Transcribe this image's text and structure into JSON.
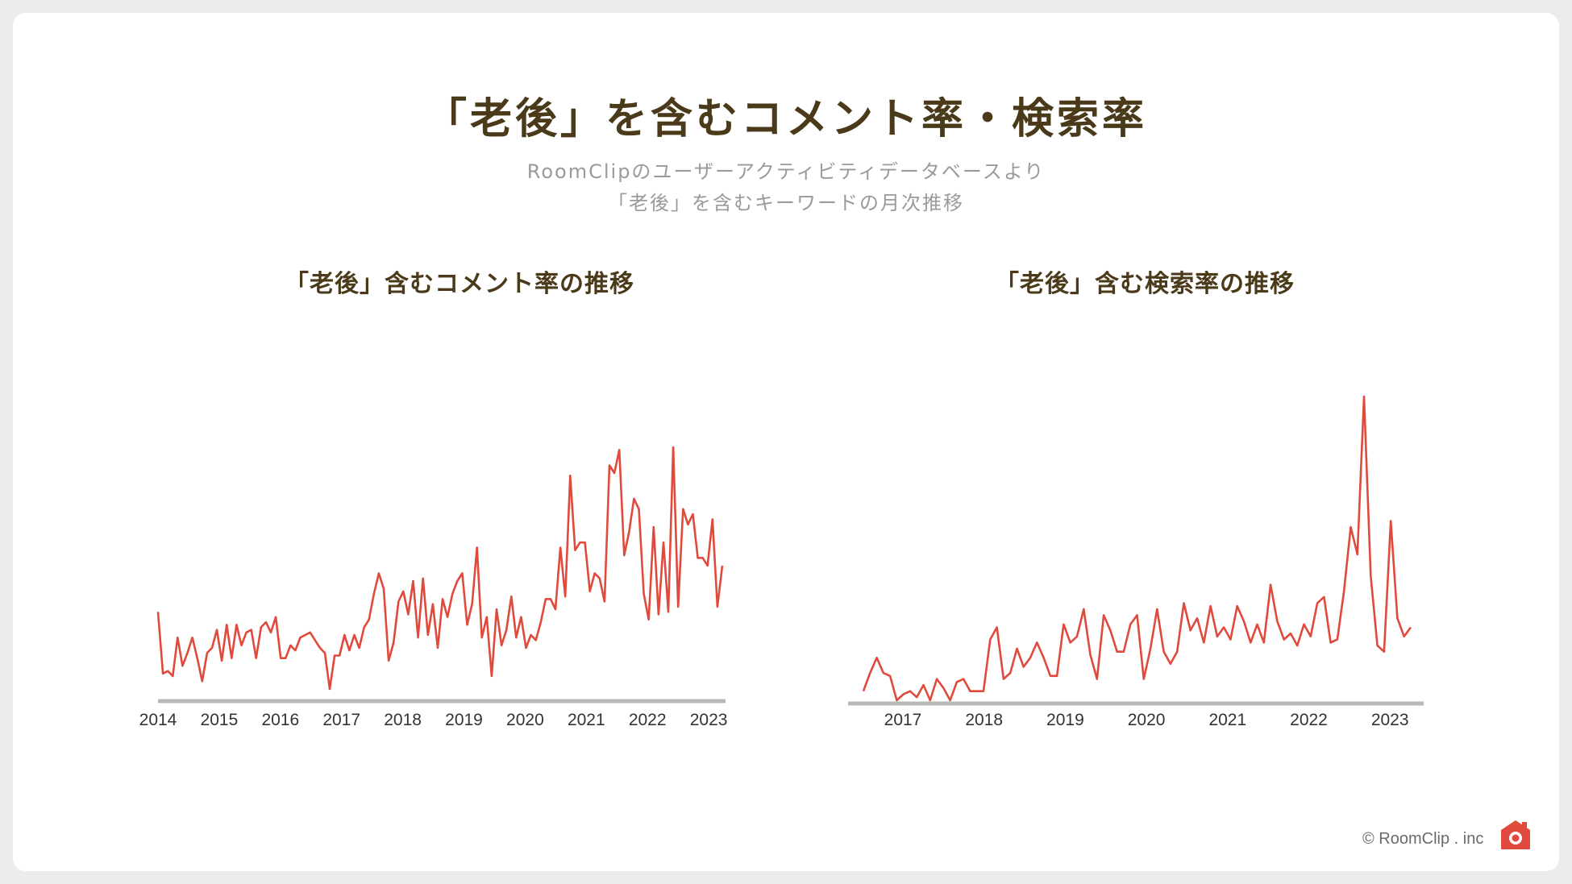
{
  "title": "「老後」を含むコメント率・検索率",
  "subtitle_lines": [
    "RoomClipのユーザーアクティビティデータベースより",
    "「老後」を含むキーワードの月次推移"
  ],
  "footer": "© RoomClip . inc",
  "colors": {
    "line": "#e04a3c",
    "axis": "#b8b8b8",
    "title": "#4a3a1a"
  },
  "chart_data": [
    {
      "type": "line",
      "title": "「老後」含むコメント率の推移",
      "x_tick_labels": [
        "2014",
        "2015",
        "2016",
        "2017",
        "2018",
        "2019",
        "2020",
        "2021",
        "2022",
        "2023"
      ],
      "x_start": "2014-01",
      "series": [
        {
          "values": [
            30,
            6,
            7,
            5,
            20,
            9,
            14,
            20,
            12,
            3,
            14,
            16,
            23,
            11,
            25,
            12,
            25,
            17,
            22,
            23,
            12,
            24,
            26,
            22,
            28,
            12,
            12,
            17,
            15,
            20,
            21,
            22,
            19,
            16,
            14,
            0,
            13,
            13,
            21,
            15,
            21,
            16,
            24,
            27,
            37,
            45,
            39,
            11,
            18,
            34,
            38,
            29,
            42,
            20,
            43,
            21,
            33,
            16,
            35,
            28,
            37,
            42,
            45,
            25,
            33,
            55,
            20,
            28,
            5,
            31,
            17,
            23,
            36,
            20,
            28,
            16,
            21,
            19,
            26,
            35,
            35,
            31,
            55,
            36,
            83,
            54,
            57,
            57,
            38,
            45,
            43,
            34,
            87,
            84,
            93,
            52,
            61,
            74,
            70,
            37,
            27,
            63,
            29,
            57,
            30,
            94,
            32,
            70,
            64,
            68,
            51,
            51,
            48,
            66,
            32,
            48
          ],
          "y_range": [
            0,
            100
          ]
        }
      ],
      "grid": false
    },
    {
      "type": "line",
      "title": "「老後」含む検索率の推移",
      "x_tick_labels": [
        "2017",
        "2018",
        "2019",
        "2020",
        "2021",
        "2022",
        "2023"
      ],
      "x_start": "2016-07",
      "series": [
        {
          "values": [
            3,
            9,
            14,
            9,
            8,
            0,
            2,
            3,
            1,
            5,
            0,
            7,
            4,
            0,
            6,
            7,
            3,
            3,
            3,
            20,
            24,
            7,
            9,
            17,
            11,
            14,
            19,
            14,
            8,
            8,
            25,
            19,
            21,
            30,
            15,
            7,
            28,
            23,
            16,
            16,
            25,
            28,
            7,
            17,
            30,
            16,
            12,
            16,
            32,
            23,
            27,
            19,
            31,
            21,
            24,
            20,
            31,
            26,
            19,
            25,
            19,
            38,
            26,
            20,
            22,
            18,
            25,
            21,
            32,
            34,
            19,
            20,
            36,
            57,
            48,
            100,
            41,
            18,
            16,
            59,
            27,
            21,
            24
          ],
          "y_range": [
            0,
            100
          ]
        }
      ],
      "grid": false
    }
  ]
}
